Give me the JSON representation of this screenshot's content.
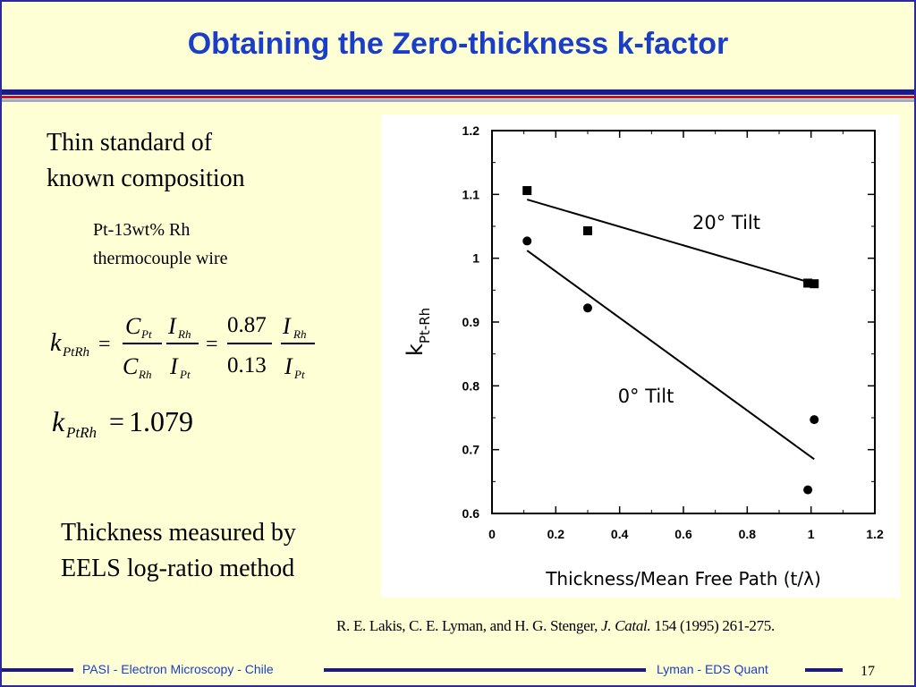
{
  "slide": {
    "title": "Obtaining the Zero-thickness k-factor",
    "left_text_1": [
      "Thin standard of",
      "known composition"
    ],
    "left_text_2": [
      "Pt-13wt% Rh",
      "thermocouple wire"
    ],
    "left_text_3": [
      "Thickness measured by",
      "EELS log-ratio method"
    ],
    "citation": {
      "authors": "R. E. Lakis, C. E. Lyman, and  H. G. Stenger,",
      "journal": "J. Catal.",
      "rest": "154 (1995) 261-275."
    },
    "footer_left": "PASI - Electron Microscopy - Chile",
    "footer_right": "Lyman - EDS Quant",
    "page_number": "17"
  },
  "equations": {
    "k": "k",
    "sub_ptrh": "PtRh",
    "eq": "=",
    "c": "C",
    "i": "I",
    "sub_pt": "Pt",
    "sub_rh": "Rh",
    "num_ratio": "0.87",
    "den_ratio": "0.13",
    "result": "1.079"
  },
  "chart_data": {
    "type": "scatter",
    "xlabel": "Thickness/Mean Free Path (t/λ)",
    "ylabel_main": "k",
    "ylabel_sub": "Pt-Rh",
    "xlim": [
      0,
      1.2
    ],
    "ylim": [
      0.6,
      1.2
    ],
    "xticks": [
      0,
      0.2,
      0.4,
      0.6,
      0.8,
      1,
      1.2
    ],
    "xtick_labels": [
      "0",
      "0.2",
      "0.4",
      "0.6",
      "0.8",
      "1",
      "1.2"
    ],
    "yticks": [
      0.6,
      0.7,
      0.8,
      0.9,
      1.0,
      1.1,
      1.2
    ],
    "ytick_labels": [
      "0.6",
      "0.7",
      "0.8",
      "0.9",
      "1",
      "1.1",
      "1.2"
    ],
    "grid": false,
    "series": [
      {
        "name": "20° Tilt",
        "marker": "square",
        "points": [
          [
            0.11,
            1.106
          ],
          [
            0.3,
            1.043
          ],
          [
            0.99,
            0.961
          ],
          [
            1.01,
            0.96
          ]
        ],
        "fit_line": [
          [
            0.11,
            1.092
          ],
          [
            1.01,
            0.96
          ]
        ]
      },
      {
        "name": "0° Tilt",
        "marker": "circle",
        "points": [
          [
            0.11,
            1.027
          ],
          [
            0.3,
            0.922
          ],
          [
            1.01,
            0.747
          ],
          [
            0.99,
            0.637
          ]
        ],
        "fit_line": [
          [
            0.11,
            1.012
          ],
          [
            1.01,
            0.685
          ]
        ]
      }
    ],
    "colors": {
      "marker": "#000000",
      "line": "#000000"
    }
  }
}
